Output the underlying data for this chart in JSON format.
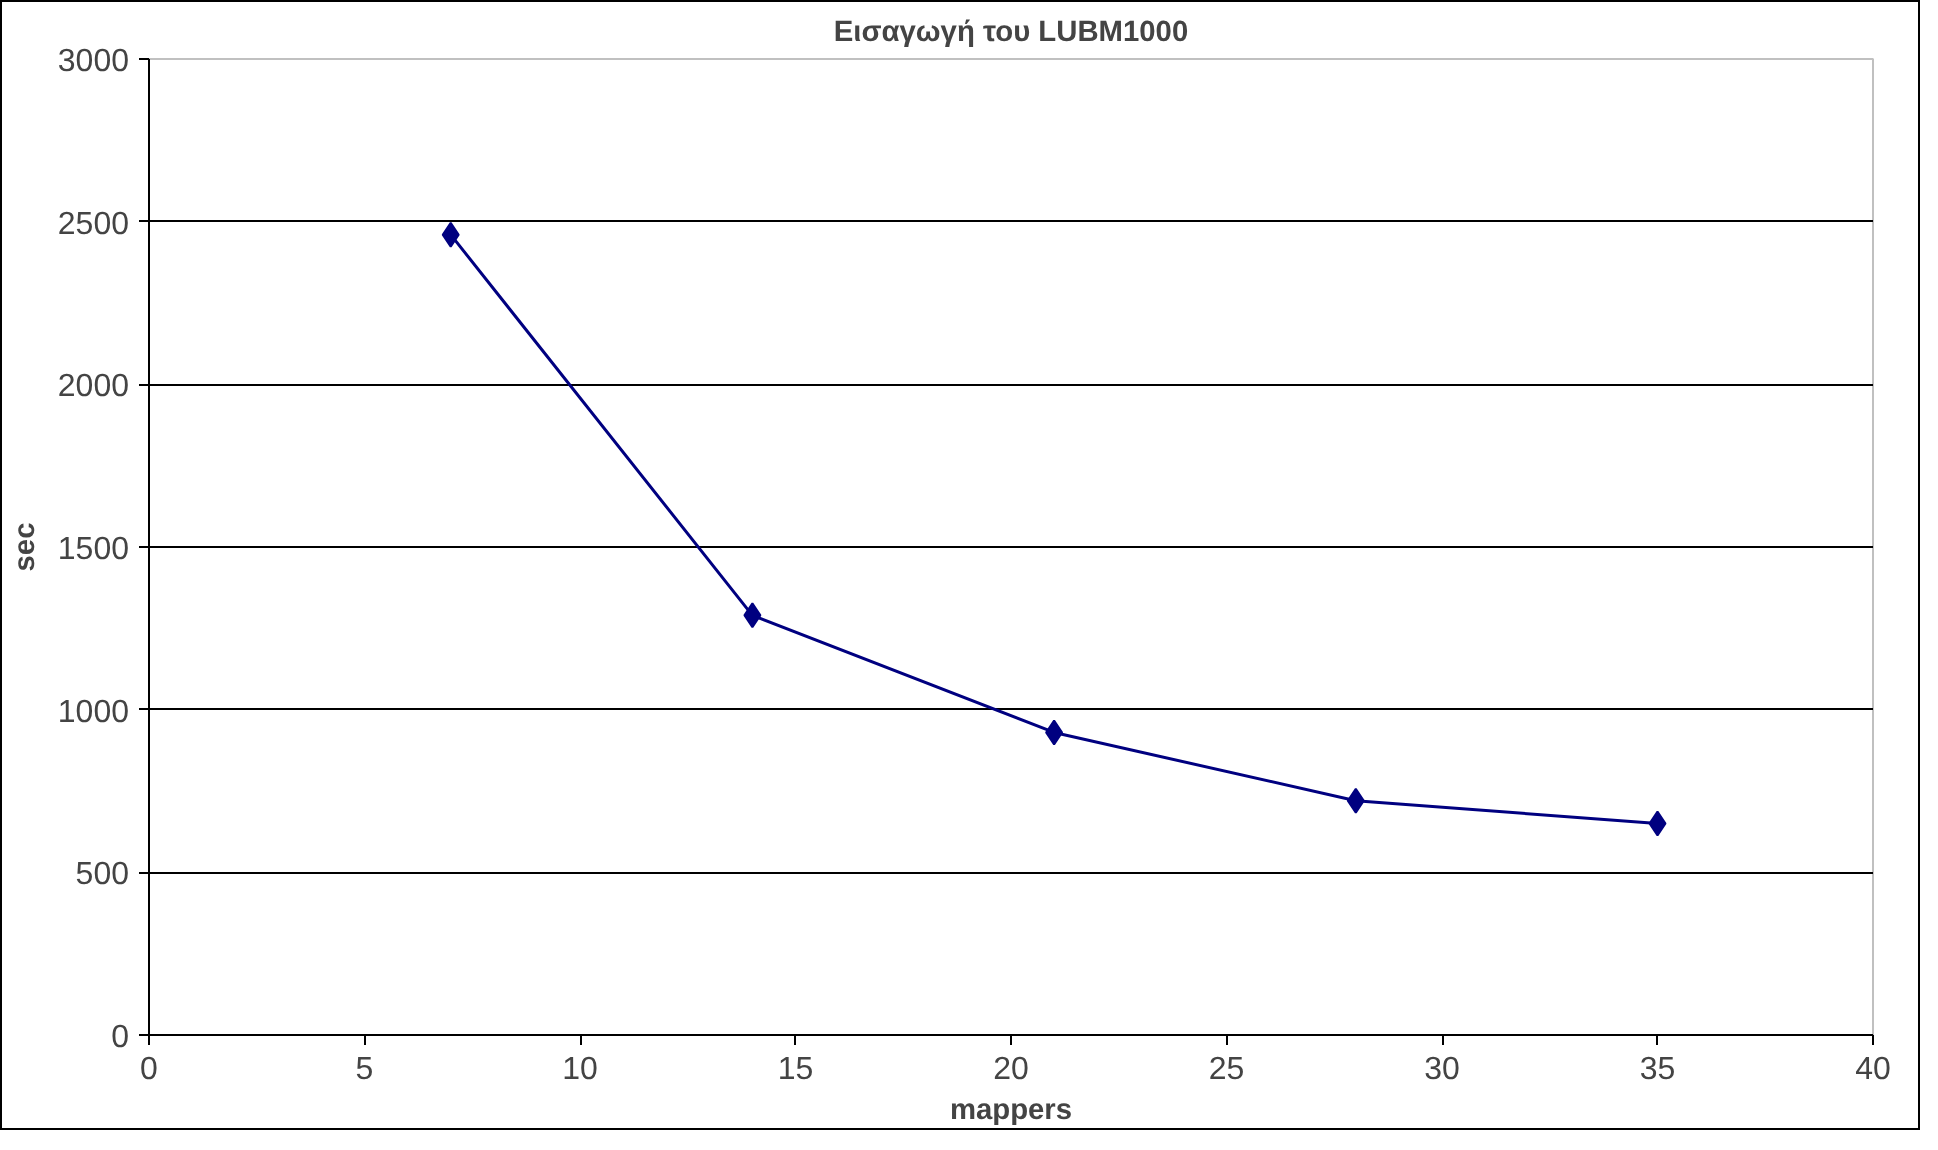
{
  "chart_data": {
    "type": "line",
    "title": "Εισαγωγή του LUBM1000",
    "xlabel": "mappers",
    "ylabel": "sec",
    "x": [
      7,
      14,
      21,
      28,
      35
    ],
    "series": [
      {
        "color": "#000080",
        "values": [
          2460,
          1290,
          930,
          720,
          650
        ]
      }
    ],
    "xlim": [
      0,
      40
    ],
    "xticks": [
      0,
      5,
      10,
      15,
      20,
      25,
      30,
      35,
      40
    ],
    "ylim": [
      0,
      3000
    ],
    "yticks": [
      0,
      500,
      1000,
      1500,
      2000,
      2500,
      3000
    ],
    "grid": "y",
    "marker": "diamond",
    "line_style": "solid"
  }
}
